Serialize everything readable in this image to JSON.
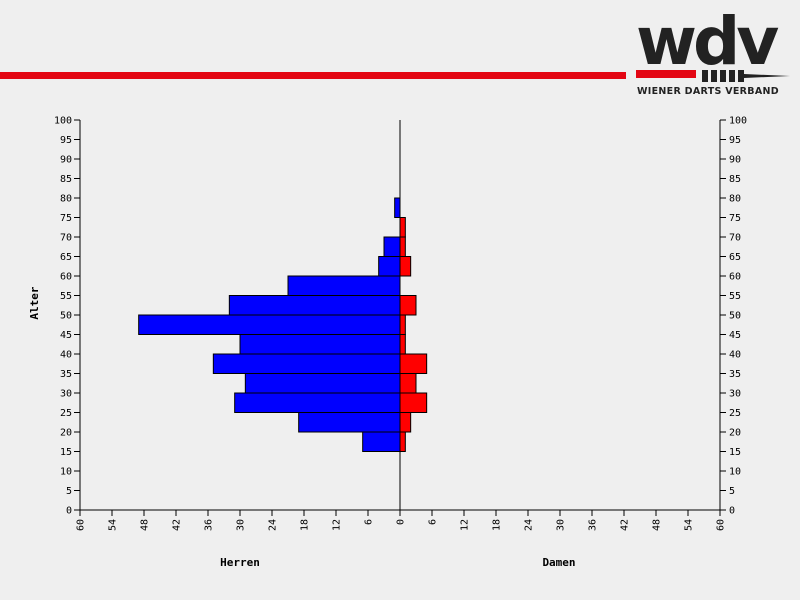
{
  "logo": {
    "letters": "wdv",
    "subtitle": "WIENER DARTS VERBAND",
    "colors": {
      "dark": "#222222",
      "red": "#e30613"
    }
  },
  "colors": {
    "background": "#efefef",
    "line": "#e30613",
    "male": "#0000ff",
    "female": "#ff0000"
  },
  "chart_data": {
    "type": "bar",
    "orientation": "horizontal-population-pyramid",
    "ylabel": "Alter",
    "left_label": "Herren",
    "right_label": "Damen",
    "y_ticks": [
      0,
      5,
      10,
      15,
      20,
      25,
      30,
      35,
      40,
      45,
      50,
      55,
      60,
      65,
      70,
      75,
      80,
      85,
      90,
      95,
      100
    ],
    "x_ticks_left": [
      60,
      54,
      48,
      42,
      36,
      30,
      24,
      18,
      12,
      6,
      0
    ],
    "x_ticks_right": [
      6,
      12,
      18,
      24,
      30,
      36,
      42,
      48,
      54,
      60
    ],
    "xlim": [
      -60,
      60
    ],
    "ylim": [
      0,
      100
    ],
    "age_bins": [
      [
        15,
        20
      ],
      [
        20,
        25
      ],
      [
        25,
        30
      ],
      [
        30,
        35
      ],
      [
        35,
        40
      ],
      [
        40,
        45
      ],
      [
        45,
        50
      ],
      [
        50,
        55
      ],
      [
        55,
        60
      ],
      [
        60,
        65
      ],
      [
        65,
        70
      ],
      [
        70,
        75
      ],
      [
        75,
        80
      ]
    ],
    "series": [
      {
        "name": "Herren",
        "color": "#0000ff",
        "values": [
          7,
          19,
          31,
          29,
          35,
          30,
          49,
          32,
          21,
          4,
          3,
          0,
          1
        ]
      },
      {
        "name": "Damen",
        "color": "#ff0000",
        "values": [
          1,
          2,
          5,
          3,
          5,
          1,
          1,
          3,
          0,
          2,
          1,
          1,
          0
        ]
      }
    ]
  }
}
